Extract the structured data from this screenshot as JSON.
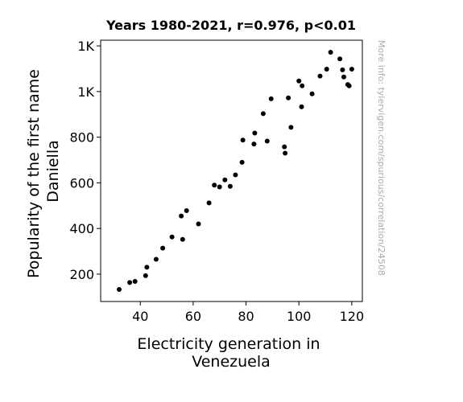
{
  "chart_data": {
    "type": "scatter",
    "title": "Years 1980-2021, r=0.976, p<0.01",
    "xlabel_lines": [
      "Electricity generation in",
      "Venezuela"
    ],
    "ylabel_lines": [
      "Popularity of the first name",
      "Daniella"
    ],
    "watermark": "More info: tylervigen.com/spurious/correlation/24508",
    "xlim": [
      25,
      124
    ],
    "ylim": [
      80,
      1225
    ],
    "x_ticks": [
      {
        "value": 40,
        "label": "40"
      },
      {
        "value": 60,
        "label": "60"
      },
      {
        "value": 80,
        "label": "80"
      },
      {
        "value": 100,
        "label": "100"
      },
      {
        "value": 120,
        "label": "120"
      }
    ],
    "y_ticks": [
      {
        "value": 200,
        "label": "200"
      },
      {
        "value": 400,
        "label": "400"
      },
      {
        "value": 600,
        "label": "600"
      },
      {
        "value": 800,
        "label": "800"
      },
      {
        "value": 1000,
        "label": "1K"
      },
      {
        "value": 1200,
        "label": "1K"
      }
    ],
    "marker_color": "#000000",
    "grid": false,
    "series": [
      {
        "points": [
          [
            32.0,
            133
          ],
          [
            36.0,
            163
          ],
          [
            38.0,
            168
          ],
          [
            42.0,
            193
          ],
          [
            42.5,
            230
          ],
          [
            46.0,
            265
          ],
          [
            48.5,
            314
          ],
          [
            52.0,
            363
          ],
          [
            55.5,
            455
          ],
          [
            56.0,
            352
          ],
          [
            57.5,
            478
          ],
          [
            62.0,
            420
          ],
          [
            66.0,
            512
          ],
          [
            68.0,
            590
          ],
          [
            70.0,
            582
          ],
          [
            72.0,
            613
          ],
          [
            74.0,
            585
          ],
          [
            76.0,
            635
          ],
          [
            78.5,
            690
          ],
          [
            78.8,
            787
          ],
          [
            83.0,
            770
          ],
          [
            83.3,
            818
          ],
          [
            86.5,
            903
          ],
          [
            88.0,
            783
          ],
          [
            89.5,
            968
          ],
          [
            94.5,
            758
          ],
          [
            94.8,
            730
          ],
          [
            96.0,
            972
          ],
          [
            97.0,
            843
          ],
          [
            100.0,
            1046
          ],
          [
            101.0,
            933
          ],
          [
            101.2,
            1025
          ],
          [
            105.0,
            990
          ],
          [
            108.0,
            1068
          ],
          [
            110.5,
            1098
          ],
          [
            112.0,
            1172
          ],
          [
            115.5,
            1143
          ],
          [
            116.5,
            1095
          ],
          [
            117.0,
            1064
          ],
          [
            118.5,
            1031
          ],
          [
            119.0,
            1025
          ],
          [
            120.0,
            1098
          ]
        ]
      }
    ]
  }
}
